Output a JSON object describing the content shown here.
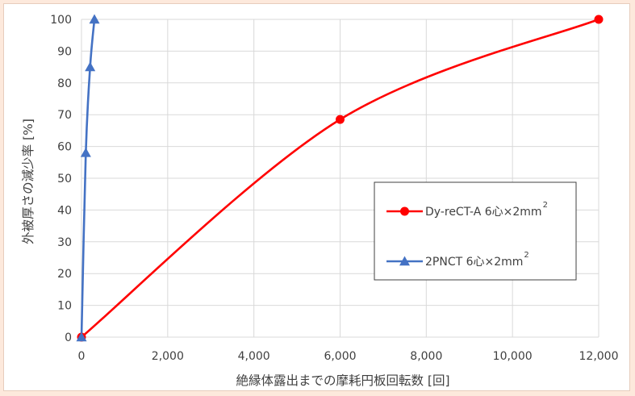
{
  "chart_data": {
    "type": "line",
    "xlabel": "絶縁体露出までの摩耗円板回転数 [回]",
    "ylabel": "外被厚さの減少率 [%]",
    "xlim": [
      0,
      12000
    ],
    "ylim": [
      0,
      100
    ],
    "x_ticks": [
      "0",
      "2,000",
      "4,000",
      "6,000",
      "8,000",
      "10,000",
      "12,000"
    ],
    "y_ticks": [
      "0",
      "10",
      "20",
      "30",
      "40",
      "50",
      "60",
      "70",
      "80",
      "90",
      "100"
    ],
    "grid": true,
    "legend_position": "right",
    "series": [
      {
        "name": "Dy-reCT-A 6心×2mm",
        "superscript": "2",
        "color": "#ff0000",
        "marker": "circle",
        "smooth": true,
        "points": [
          [
            0,
            0
          ],
          [
            6000,
            68.5
          ],
          [
            12000,
            100
          ]
        ]
      },
      {
        "name": "2PNCT 6心×2mm",
        "superscript": "2",
        "color": "#4472c4",
        "marker": "triangle",
        "smooth": true,
        "points": [
          [
            0,
            0
          ],
          [
            100,
            58
          ],
          [
            200,
            85
          ],
          [
            300,
            100
          ]
        ]
      }
    ]
  }
}
